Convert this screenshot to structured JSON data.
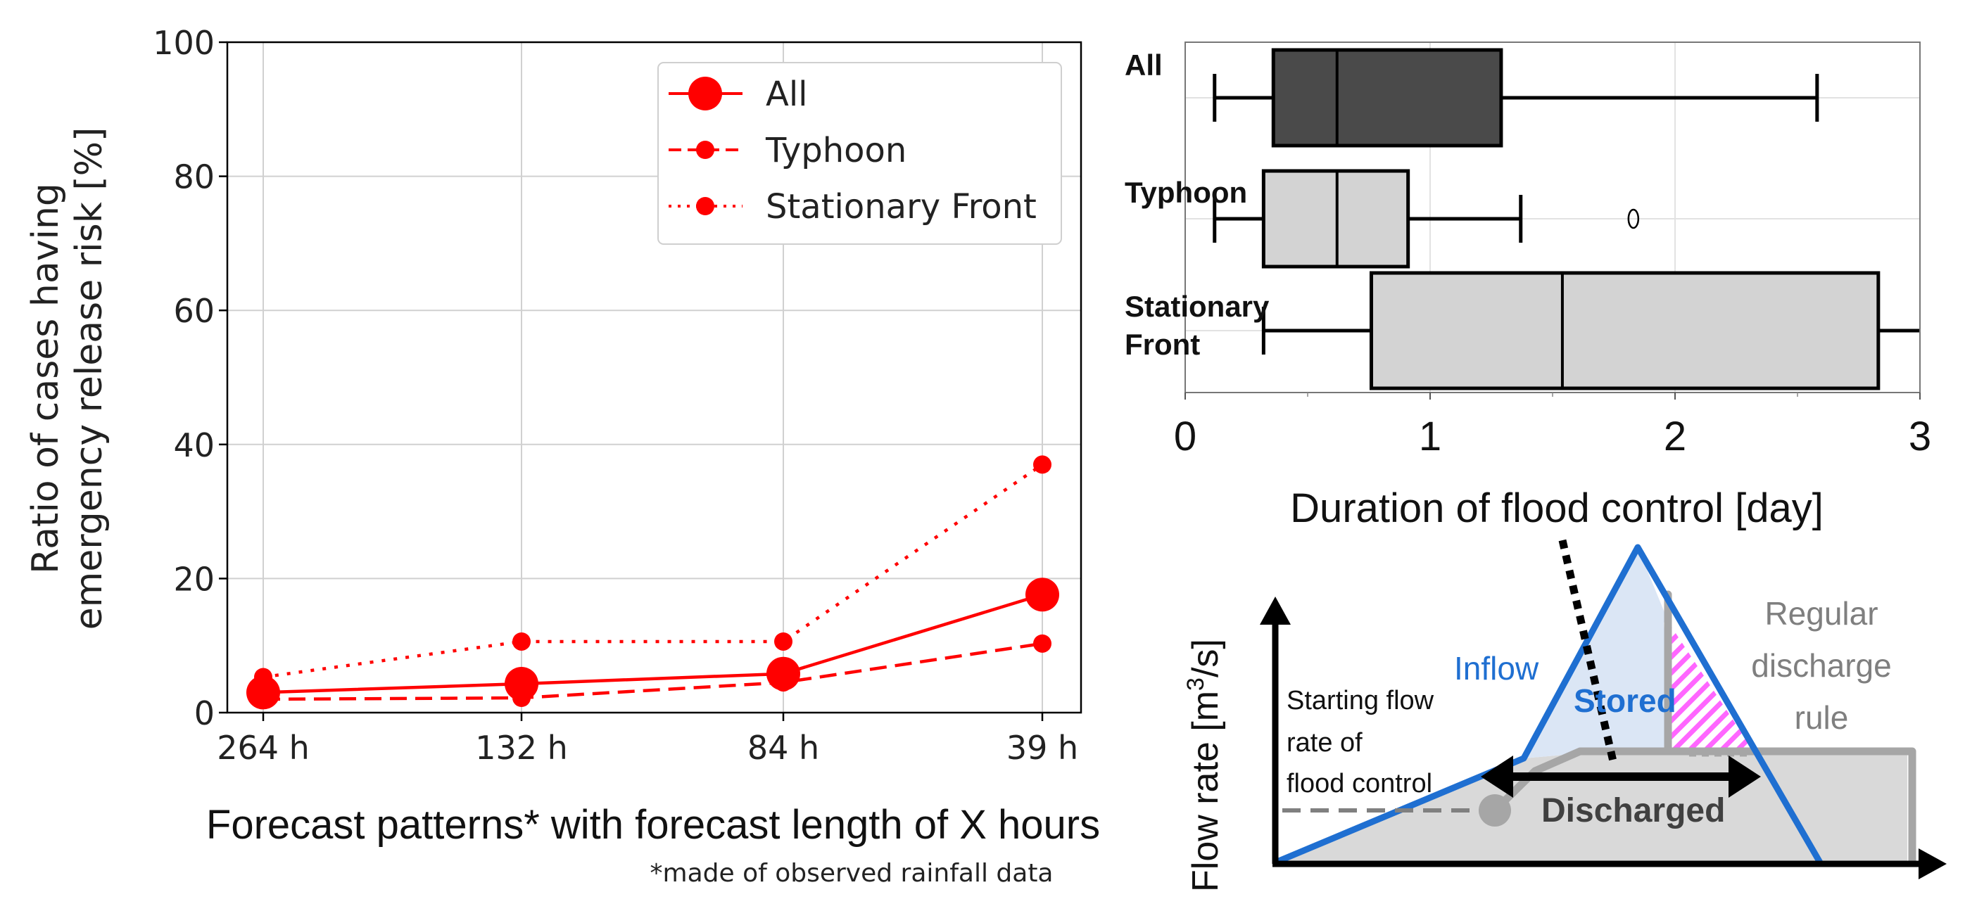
{
  "chart_data": [
    {
      "type": "line",
      "ylabel_lines": [
        "Ratio of cases having",
        "emergency release risk [%]"
      ],
      "xlabel": "Forecast patterns* with forecast length of X hours",
      "footnote": "*made of observed rainfall data",
      "categories": [
        "264 h",
        "132 h",
        "84 h",
        "39 h"
      ],
      "ylim": [
        0,
        100
      ],
      "yticks": [
        "0",
        "20",
        "40",
        "60",
        "80",
        "100"
      ],
      "grid": true,
      "legend_position": "top-right",
      "series": [
        {
          "name": "All",
          "values": [
            3.0,
            4.3,
            5.8,
            17.6
          ],
          "style": "solid",
          "color": "#ff0000"
        },
        {
          "name": "Typhoon",
          "values": [
            2.0,
            2.2,
            4.5,
            10.3
          ],
          "style": "dashed",
          "color": "#ff0000"
        },
        {
          "name": "Stationary Front",
          "values": [
            5.3,
            10.6,
            10.6,
            37.0
          ],
          "style": "dotted",
          "color": "#ff0000"
        }
      ]
    },
    {
      "type": "box",
      "xlabel": "Duration of flood control [day]",
      "xlim": [
        0,
        3
      ],
      "xticks": [
        "0",
        "1",
        "2",
        "3"
      ],
      "grid": true,
      "boxes": [
        {
          "label_lines": [
            "All"
          ],
          "whisker_low": 0.12,
          "q1": 0.36,
          "median": 0.62,
          "q3": 1.29,
          "whisker_high": 2.58,
          "outliers": [],
          "fill": "#4a4a4a"
        },
        {
          "label_lines": [
            "Typhoon"
          ],
          "whisker_low": 0.12,
          "q1": 0.32,
          "median": 0.62,
          "q3": 0.91,
          "whisker_high": 1.37,
          "outliers": [
            1.83
          ],
          "fill": "#d3d3d3"
        },
        {
          "label_lines": [
            "Stationary",
            "Front"
          ],
          "whisker_low": 0.32,
          "q1": 0.76,
          "median": 1.54,
          "q3": 2.83,
          "whisker_high": 3.0,
          "outliers": [],
          "fill": "#d3d3d3"
        }
      ]
    }
  ],
  "diagram": {
    "ylabel": "Flow rate [m",
    "ylabel_sup": "3",
    "ylabel_tail": "/s]",
    "inflow_label": "Inflow",
    "stored_label": "Stored",
    "discharged_label": "Discharged",
    "regular_lines": [
      "Regular",
      "discharge",
      "rule"
    ],
    "starting_lines": [
      "Starting flow",
      "rate of",
      "flood control"
    ],
    "colors": {
      "inflow": "#1f6fd1",
      "stored_fill": "#dbe6f5",
      "discharged_fill": "#d9d9d9",
      "rule": "#a6a6a6",
      "hatch": "#ff66ff"
    }
  }
}
